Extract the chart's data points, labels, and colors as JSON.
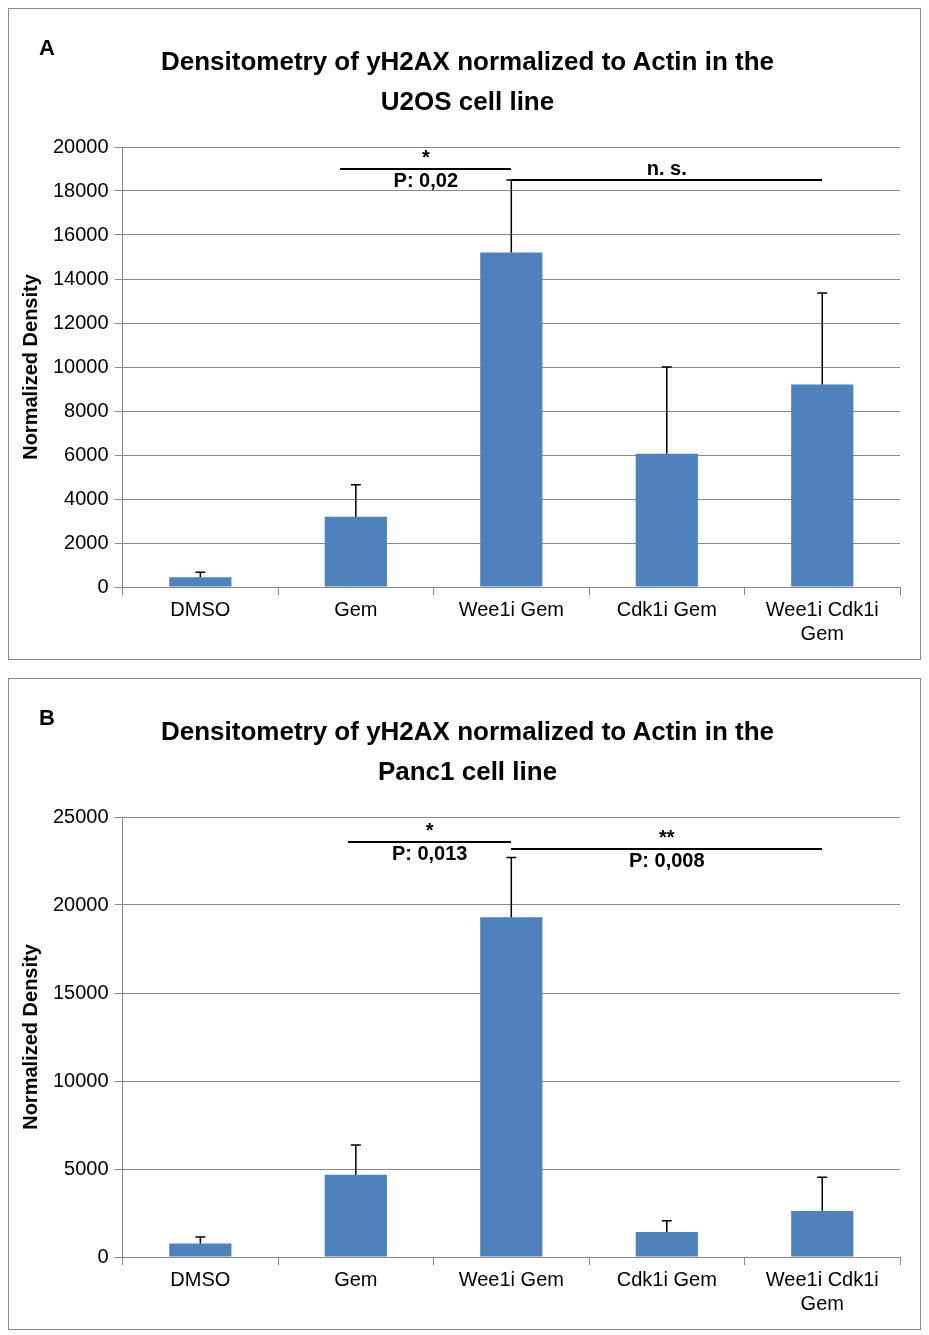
{
  "chart_data": [
    {
      "type": "bar",
      "title": "Densitometry of yH2AX normalized to Actin in the U2OS cell line",
      "ylabel": "Normalized Density",
      "annotations": [
        "A",
        "*",
        "P: 0,02",
        "n. s."
      ],
      "categories": [
        "DMSO",
        "Gem",
        "Wee1i Gem",
        "Cdk1i Gem",
        "Wee1i Cdk1i Gem"
      ],
      "values": [
        440,
        3190,
        15200,
        6060,
        9210
      ],
      "errors": [
        [
          440,
          670
        ],
        [
          3190,
          4650
        ],
        [
          15200,
          18500
        ],
        [
          6060,
          10000
        ],
        [
          9210,
          13360
        ]
      ],
      "color": "#4f81bd",
      "ylim": [
        0,
        20000
      ],
      "yticks": [
        0,
        2000,
        4000,
        6000,
        8000,
        10000,
        12000,
        14000,
        16000,
        18000,
        20000
      ],
      "grid": "y"
    },
    {
      "type": "bar",
      "title": "Densitometry of yH2AX normalized to Actin in the Panc1 cell line",
      "ylabel": "Normalized Density",
      "annotations": [
        "B",
        "*",
        "P: 0,013",
        "**",
        "P: 0,008"
      ],
      "categories": [
        "DMSO",
        "Gem",
        "Wee1i Gem",
        "Cdk1i Gem",
        "Wee1i Cdk1i Gem"
      ],
      "values": [
        760,
        4680,
        19300,
        1420,
        2620
      ],
      "errors": [
        [
          760,
          1130
        ],
        [
          4680,
          6370
        ],
        [
          19300,
          22700
        ],
        [
          1420,
          2060
        ],
        [
          2620,
          4530
        ]
      ],
      "color": "#4f81bd",
      "ylim": [
        0,
        25000
      ],
      "yticks": [
        0,
        5000,
        10000,
        15000,
        20000,
        25000
      ],
      "grid": "y"
    }
  ]
}
